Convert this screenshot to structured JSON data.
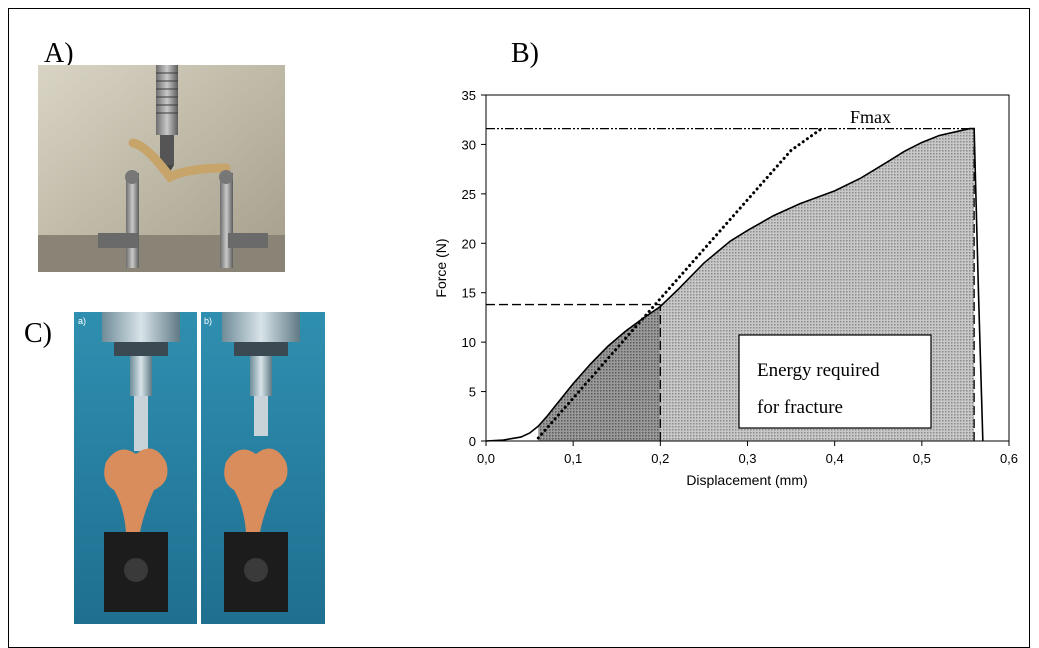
{
  "panels": {
    "a_label": "A)",
    "b_label": "B)",
    "c_label": "C)"
  },
  "photo_c": {
    "sub_a": "a)",
    "sub_b": "b)"
  },
  "chart_data": {
    "type": "line",
    "xlabel": "Displacement (mm)",
    "ylabel": "Force (N)",
    "xlim": [
      0,
      0.6
    ],
    "ylim": [
      0,
      35
    ],
    "x_ticks": [
      "0,0",
      "0,1",
      "0,2",
      "0,3",
      "0,4",
      "0,5",
      "0,6"
    ],
    "y_ticks": [
      "0",
      "5",
      "10",
      "15",
      "20",
      "25",
      "30",
      "35"
    ],
    "grid": false,
    "series": [
      {
        "style": "solid",
        "points": [
          [
            0,
            0
          ],
          [
            0.02,
            0.1
          ],
          [
            0.04,
            0.4
          ],
          [
            0.05,
            0.8
          ],
          [
            0.06,
            1.5
          ],
          [
            0.07,
            2.5
          ],
          [
            0.08,
            3.6
          ],
          [
            0.1,
            5.8
          ],
          [
            0.12,
            7.8
          ],
          [
            0.14,
            9.6
          ],
          [
            0.16,
            11.1
          ],
          [
            0.18,
            12.4
          ],
          [
            0.2,
            13.6
          ],
          [
            0.22,
            15.3
          ],
          [
            0.25,
            18.0
          ],
          [
            0.28,
            20.2
          ],
          [
            0.3,
            21.3
          ],
          [
            0.33,
            22.8
          ],
          [
            0.36,
            24.0
          ],
          [
            0.4,
            25.3
          ],
          [
            0.43,
            26.6
          ],
          [
            0.46,
            28.2
          ],
          [
            0.48,
            29.3
          ],
          [
            0.5,
            30.2
          ],
          [
            0.52,
            30.9
          ],
          [
            0.54,
            31.3
          ],
          [
            0.555,
            31.6
          ],
          [
            0.56,
            31.6
          ],
          [
            0.565,
            15
          ],
          [
            0.57,
            0
          ]
        ]
      },
      {
        "style": "dotted",
        "points": [
          [
            0.06,
            0.3
          ],
          [
            0.2,
            14.4
          ],
          [
            0.35,
            29.4
          ],
          [
            0.385,
            31.6
          ]
        ]
      }
    ],
    "reference_lines": [
      {
        "style": "dash-dot-dot",
        "y": 31.6,
        "x_from": 0.0,
        "x_to": 0.56
      },
      {
        "style": "dashed",
        "y": 13.8,
        "x_from": 0.0,
        "x_to": 0.2
      },
      {
        "style": "dashed",
        "x": 0.2,
        "y_from": 0.0,
        "y_to": 13.8
      },
      {
        "style": "dashed",
        "x": 0.56,
        "y_from": 0.0,
        "y_to": 31.6
      }
    ],
    "annotations": {
      "fmax": "Fmax",
      "energy_line1": "Energy required",
      "energy_line2": "for fracture"
    }
  }
}
